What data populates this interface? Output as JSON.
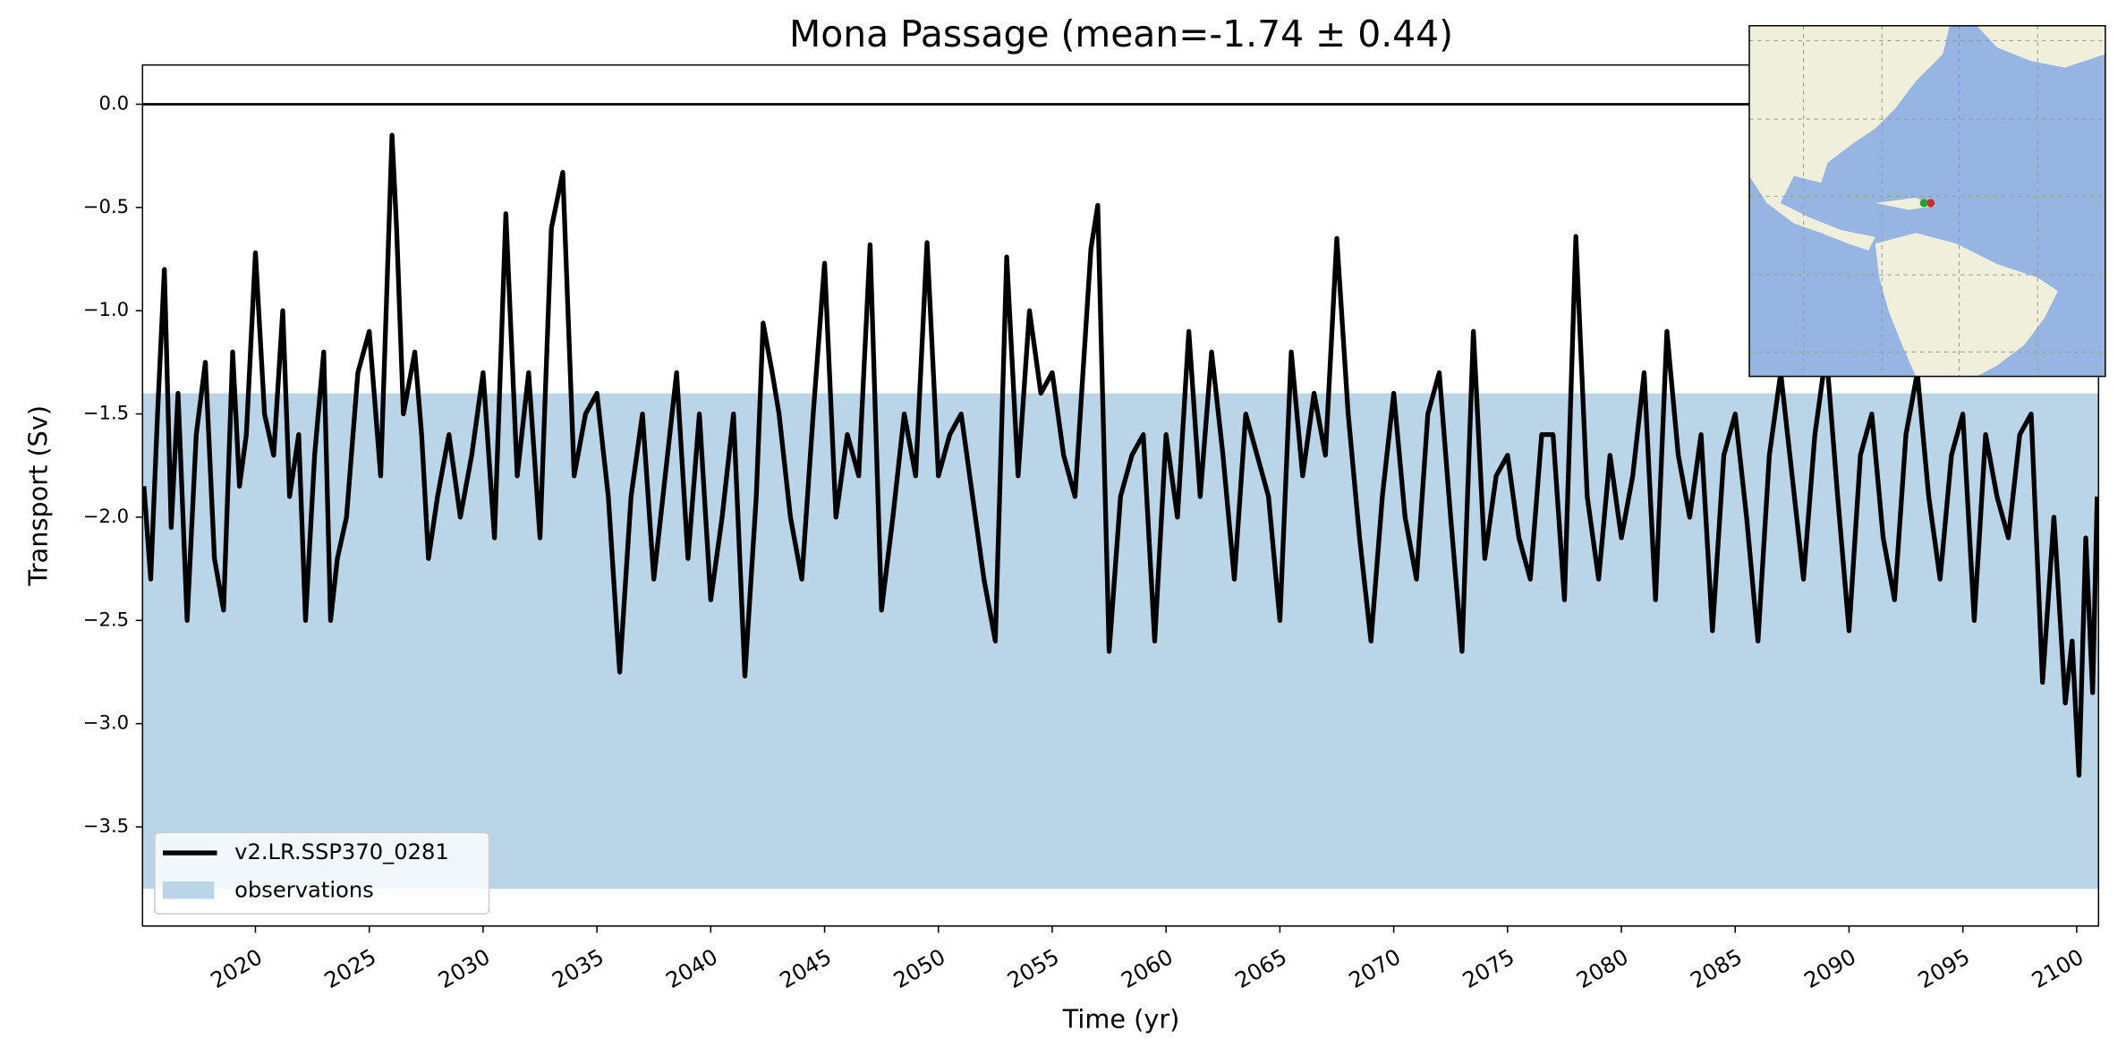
{
  "chart_data": {
    "type": "line",
    "title": "Mona Passage (mean=-1.74 ± 0.44)",
    "xlabel": "Time (yr)",
    "ylabel": "Transport (Sv)",
    "xlim": [
      2015.04,
      2100.96
    ],
    "ylim": [
      -3.98,
      0.19
    ],
    "xticks": [
      2020,
      2025,
      2030,
      2035,
      2040,
      2045,
      2050,
      2055,
      2060,
      2065,
      2070,
      2075,
      2080,
      2085,
      2090,
      2095,
      2100
    ],
    "yticks": [
      {
        "value": 0,
        "label": "0.0"
      },
      {
        "value": -0.5,
        "label": "−0.5"
      },
      {
        "value": -1,
        "label": "−1.0"
      },
      {
        "value": -1.5,
        "label": "−1.5"
      },
      {
        "value": -2,
        "label": "−2.0"
      },
      {
        "value": -2.5,
        "label": "−2.5"
      },
      {
        "value": -3,
        "label": "−3.0"
      },
      {
        "value": -3.5,
        "label": "−3.5"
      }
    ],
    "x": [
      2015.1,
      2015.4,
      2015.7,
      2016.0,
      2016.3,
      2016.6,
      2017.0,
      2017.4,
      2017.8,
      2018.2,
      2018.6,
      2019.0,
      2019.3,
      2019.6,
      2020.0,
      2020.4,
      2020.8,
      2021.2,
      2021.5,
      2021.9,
      2022.2,
      2022.6,
      2023.0,
      2023.3,
      2023.6,
      2024.0,
      2024.5,
      2025.0,
      2025.5,
      2026.0,
      2026.2,
      2026.5,
      2027.0,
      2027.3,
      2027.6,
      2028.0,
      2028.5,
      2029.0,
      2029.5,
      2030.0,
      2030.5,
      2031.0,
      2031.5,
      2032.0,
      2032.5,
      2033.0,
      2033.5,
      2034.0,
      2034.5,
      2035.0,
      2035.5,
      2036.0,
      2036.5,
      2037.0,
      2037.5,
      2038.0,
      2038.5,
      2039.0,
      2039.5,
      2040.0,
      2040.5,
      2041.0,
      2041.5,
      2042.0,
      2042.3,
      2042.7,
      2043.0,
      2043.5,
      2044.0,
      2044.5,
      2045.0,
      2045.5,
      2046.0,
      2046.5,
      2047.0,
      2047.5,
      2048.0,
      2048.5,
      2049.0,
      2049.5,
      2050.0,
      2050.5,
      2051.0,
      2051.5,
      2052.0,
      2052.5,
      2053.0,
      2053.5,
      2054.0,
      2054.5,
      2055.0,
      2055.5,
      2056.0,
      2056.7,
      2057.0,
      2057.5,
      2058.0,
      2058.5,
      2059.0,
      2059.5,
      2060.0,
      2060.5,
      2061.0,
      2061.5,
      2062.0,
      2062.5,
      2063.0,
      2063.5,
      2064.0,
      2064.5,
      2065.0,
      2065.5,
      2066.0,
      2066.5,
      2067.0,
      2067.5,
      2068.0,
      2068.5,
      2069.0,
      2069.5,
      2070.0,
      2070.5,
      2071.0,
      2071.5,
      2072.0,
      2072.5,
      2073.0,
      2073.5,
      2074.0,
      2074.5,
      2075.0,
      2075.5,
      2076.0,
      2076.5,
      2077.0,
      2077.5,
      2078.0,
      2078.5,
      2079.0,
      2079.5,
      2080.0,
      2080.5,
      2081.0,
      2081.5,
      2082.0,
      2082.5,
      2083.0,
      2083.5,
      2084.0,
      2084.5,
      2085.0,
      2085.5,
      2086.0,
      2086.5,
      2087.0,
      2087.5,
      2088.0,
      2088.5,
      2089.0,
      2089.5,
      2090.0,
      2090.5,
      2091.0,
      2091.5,
      2092.0,
      2092.5,
      2093.0,
      2093.5,
      2094.0,
      2094.5,
      2095.0,
      2095.5,
      2096.0,
      2096.5,
      2097.0,
      2097.5,
      2098.0,
      2098.5,
      2099.0,
      2099.5,
      2099.8,
      2100.1,
      2100.4,
      2100.7,
      2100.9
    ],
    "series": [
      {
        "name": "v2.LR.SSP370_0281",
        "color": "#000000",
        "values": [
          -1.85,
          -2.3,
          -1.5,
          -0.8,
          -2.05,
          -1.4,
          -2.5,
          -1.6,
          -1.25,
          -2.2,
          -2.45,
          -1.2,
          -1.85,
          -1.6,
          -0.72,
          -1.5,
          -1.7,
          -1.0,
          -1.9,
          -1.6,
          -2.5,
          -1.7,
          -1.2,
          -2.5,
          -2.2,
          -2.0,
          -1.3,
          -1.1,
          -1.8,
          -0.15,
          -0.6,
          -1.5,
          -1.2,
          -1.6,
          -2.2,
          -1.9,
          -1.6,
          -2.0,
          -1.7,
          -1.3,
          -2.1,
          -0.53,
          -1.8,
          -1.3,
          -2.1,
          -0.6,
          -0.33,
          -1.8,
          -1.5,
          -1.4,
          -1.9,
          -2.75,
          -1.9,
          -1.5,
          -2.3,
          -1.8,
          -1.3,
          -2.2,
          -1.5,
          -2.4,
          -2.0,
          -1.5,
          -2.77,
          -1.9,
          -1.06,
          -1.3,
          -1.5,
          -2.0,
          -2.3,
          -1.5,
          -0.77,
          -2.0,
          -1.6,
          -1.8,
          -0.68,
          -2.45,
          -2.0,
          -1.5,
          -1.8,
          -0.67,
          -1.8,
          -1.6,
          -1.5,
          -1.9,
          -2.3,
          -2.6,
          -0.74,
          -1.8,
          -1.0,
          -1.4,
          -1.3,
          -1.7,
          -1.9,
          -0.7,
          -0.49,
          -2.65,
          -1.9,
          -1.7,
          -1.6,
          -2.6,
          -1.6,
          -2.0,
          -1.1,
          -1.9,
          -1.2,
          -1.7,
          -2.3,
          -1.5,
          -1.7,
          -1.9,
          -2.5,
          -1.2,
          -1.8,
          -1.4,
          -1.7,
          -0.65,
          -1.5,
          -2.1,
          -2.6,
          -1.9,
          -1.4,
          -2.0,
          -2.3,
          -1.5,
          -1.3,
          -2.0,
          -2.65,
          -1.1,
          -2.2,
          -1.8,
          -1.7,
          -2.1,
          -2.3,
          -1.6,
          -1.6,
          -2.4,
          -0.64,
          -1.9,
          -2.3,
          -1.7,
          -2.1,
          -1.8,
          -1.3,
          -2.4,
          -1.1,
          -1.7,
          -2.0,
          -1.6,
          -2.55,
          -1.7,
          -1.5,
          -2.0,
          -2.6,
          -1.7,
          -1.3,
          -1.8,
          -2.3,
          -1.6,
          -1.2,
          -1.9,
          -2.55,
          -1.7,
          -1.5,
          -2.1,
          -2.4,
          -1.6,
          -1.3,
          -1.9,
          -2.3,
          -1.7,
          -1.5,
          -2.5,
          -1.6,
          -1.9,
          -2.1,
          -1.6,
          -1.5,
          -2.8,
          -2.0,
          -2.9,
          -2.6,
          -3.25,
          -2.1,
          -2.85,
          -1.9
        ]
      }
    ],
    "bands": [
      {
        "name": "observations",
        "range": [
          -3.8,
          -1.4
        ],
        "color": "#bad5e8"
      }
    ],
    "hlines": [
      {
        "value": 0,
        "color": "#000000"
      }
    ],
    "legend": "lower left"
  }
}
